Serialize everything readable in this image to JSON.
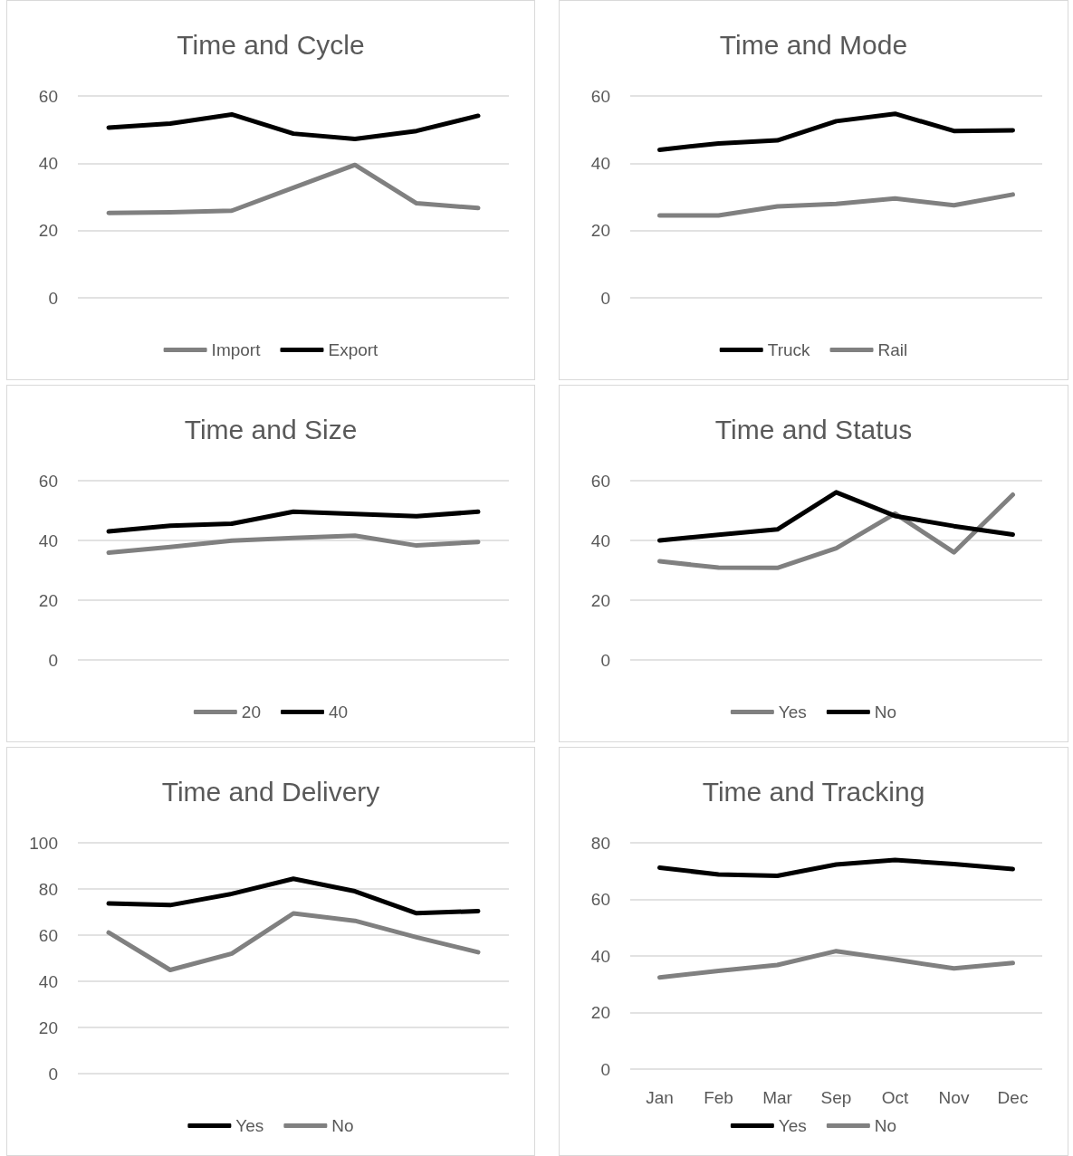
{
  "chart_data": [
    {
      "type": "line",
      "title": "Time and Cycle",
      "categories": [
        null,
        null,
        null,
        null,
        null,
        null,
        null
      ],
      "tick_labels": "y",
      "ylim": [
        0,
        60
      ],
      "yticks": [
        0,
        20,
        40,
        60
      ],
      "grid": "y",
      "legend": "bottom",
      "series": [
        {
          "name": "Import",
          "color": "#808080",
          "values": [
            25.2,
            25.4,
            25.9,
            32.7,
            39.5,
            28.1,
            26.7
          ]
        },
        {
          "name": "Export",
          "color": "#000000",
          "values": [
            50.6,
            51.8,
            54.5,
            48.8,
            47.2,
            49.6,
            54.1
          ]
        }
      ]
    },
    {
      "type": "line",
      "title": "Time and Mode",
      "categories": [
        null,
        null,
        null,
        null,
        null,
        null,
        null
      ],
      "tick_labels": "y",
      "ylim": [
        0,
        60
      ],
      "yticks": [
        0,
        20,
        40,
        60
      ],
      "grid": "y",
      "legend": "bottom",
      "series": [
        {
          "name": "Truck",
          "color": "#000000",
          "values": [
            44.0,
            45.9,
            46.8,
            52.5,
            54.7,
            49.6,
            49.8
          ]
        },
        {
          "name": "Rail",
          "color": "#808080",
          "values": [
            24.5,
            24.5,
            27.2,
            27.9,
            29.5,
            27.5,
            30.7
          ]
        }
      ]
    },
    {
      "type": "line",
      "title": "Time and Size",
      "categories": [
        null,
        null,
        null,
        null,
        null,
        null,
        null
      ],
      "tick_labels": "y",
      "ylim": [
        0,
        60
      ],
      "yticks": [
        0,
        20,
        40,
        60
      ],
      "grid": "y",
      "legend": "bottom",
      "series": [
        {
          "name": "20",
          "color": "#808080",
          "values": [
            35.9,
            37.8,
            39.9,
            40.8,
            41.6,
            38.3,
            39.5
          ]
        },
        {
          "name": "40",
          "color": "#000000",
          "values": [
            43.0,
            44.9,
            45.6,
            49.6,
            48.9,
            48.1,
            49.6
          ]
        }
      ]
    },
    {
      "type": "line",
      "title": "Time and Status",
      "categories": [
        null,
        null,
        null,
        null,
        null,
        null,
        null
      ],
      "tick_labels": "y",
      "ylim": [
        0,
        60
      ],
      "yticks": [
        0,
        20,
        40,
        60
      ],
      "grid": "y",
      "legend": "bottom",
      "series": [
        {
          "name": "Yes",
          "color": "#808080",
          "values": [
            33.0,
            30.9,
            30.8,
            37.4,
            49.0,
            36.0,
            55.3
          ]
        },
        {
          "name": "No",
          "color": "#000000",
          "values": [
            40.0,
            41.9,
            43.7,
            56.1,
            48.2,
            44.8,
            42.0
          ]
        }
      ]
    },
    {
      "type": "line",
      "title": "Time and Delivery",
      "categories": [
        null,
        null,
        null,
        null,
        null,
        null,
        null
      ],
      "tick_labels": "y",
      "ylim": [
        0,
        100
      ],
      "yticks": [
        0,
        20,
        40,
        60,
        80,
        100
      ],
      "grid": "y",
      "legend": "bottom",
      "series": [
        {
          "name": "Yes",
          "color": "#000000",
          "values": [
            73.7,
            73.0,
            77.9,
            84.4,
            79.0,
            69.5,
            70.4
          ]
        },
        {
          "name": "No",
          "color": "#808080",
          "values": [
            61.1,
            44.9,
            52.0,
            69.4,
            66.2,
            59.1,
            52.6
          ]
        }
      ]
    },
    {
      "type": "line",
      "title": "Time and Tracking",
      "categories": [
        "Jan",
        "Feb",
        "Mar",
        "Sep",
        "Oct",
        "Nov",
        "Dec"
      ],
      "ylim": [
        0,
        80
      ],
      "yticks": [
        0,
        20,
        40,
        60,
        80
      ],
      "grid": "y",
      "legend": "bottom",
      "series": [
        {
          "name": "Yes",
          "color": "#000000",
          "values": [
            71.2,
            68.8,
            68.3,
            72.3,
            73.9,
            72.5,
            70.7
          ]
        },
        {
          "name": "No",
          "color": "#808080",
          "values": [
            32.4,
            34.7,
            36.8,
            41.7,
            38.7,
            35.6,
            37.5
          ]
        }
      ]
    }
  ]
}
